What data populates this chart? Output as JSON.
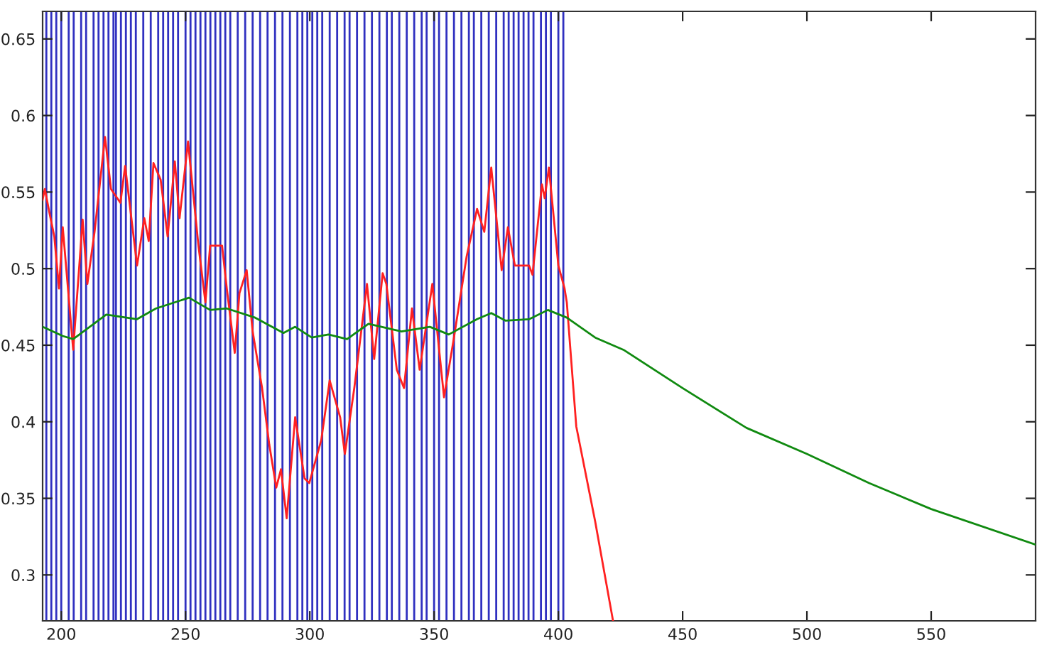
{
  "chart_data": {
    "type": "line",
    "xlim": [
      192.5,
      592
    ],
    "ylim": [
      0.27,
      0.668
    ],
    "xticks": [
      200,
      250,
      300,
      350,
      400,
      450,
      500,
      550
    ],
    "yticks": [
      0.3,
      0.35,
      0.4,
      0.45,
      0.5,
      0.55,
      0.6,
      0.65
    ],
    "grid": false,
    "series": [
      {
        "color": "#ff2020",
        "x": [
          192.5,
          193.4,
          195.3,
          197.2,
          199.1,
          200.6,
          204.8,
          208.6,
          210.5,
          213.4,
          217.6,
          220,
          223.8,
          225.7,
          230.5,
          233.4,
          235.2,
          237.1,
          240,
          242.8,
          245.7,
          247.6,
          251,
          255.2,
          258,
          259.9,
          264.7,
          266.6,
          269.8,
          271.7,
          274.6,
          277,
          280.8,
          283.7,
          286.5,
          288.4,
          290.7,
          294.1,
          297.9,
          299.8,
          304.6,
          308,
          312.2,
          314.1,
          317.9,
          323,
          325.9,
          329.3,
          330.8,
          335,
          337.9,
          341.1,
          344.2,
          349.3,
          354,
          357.8,
          363.1,
          367.3,
          370.2,
          373,
          377.2,
          379.7,
          382.5,
          388.2,
          389.6,
          393.4,
          394.5,
          396.2,
          400,
          402.5,
          403.4,
          407.2,
          414.8,
          422
        ],
        "values": [
          0.545,
          0.552,
          0.536,
          0.521,
          0.487,
          0.527,
          0.447,
          0.532,
          0.49,
          0.524,
          0.586,
          0.552,
          0.543,
          0.567,
          0.502,
          0.533,
          0.518,
          0.569,
          0.558,
          0.521,
          0.57,
          0.533,
          0.583,
          0.515,
          0.478,
          0.515,
          0.515,
          0.487,
          0.445,
          0.484,
          0.499,
          0.459,
          0.422,
          0.385,
          0.357,
          0.369,
          0.337,
          0.403,
          0.363,
          0.36,
          0.388,
          0.427,
          0.403,
          0.379,
          0.422,
          0.49,
          0.441,
          0.497,
          0.49,
          0.434,
          0.422,
          0.474,
          0.434,
          0.49,
          0.416,
          0.453,
          0.508,
          0.539,
          0.524,
          0.566,
          0.499,
          0.527,
          0.502,
          0.502,
          0.496,
          0.555,
          0.546,
          0.566,
          0.502,
          0.487,
          0.478,
          0.397,
          0.335,
          0.27
        ]
      },
      {
        "color": "#108a10",
        "x": [
          192.5,
          200.6,
          204.8,
          218.1,
          230.5,
          238.1,
          251.4,
          259.9,
          266.6,
          278,
          289.4,
          294.1,
          300.8,
          307.5,
          315,
          323.6,
          336.9,
          348.3,
          355.9,
          367.3,
          373,
          378.8,
          388.3,
          395.8,
          403.4,
          414.8,
          426.2,
          450,
          475.7,
          500,
          525,
          550,
          591.6
        ],
        "values": [
          0.462,
          0.456,
          0.454,
          0.47,
          0.467,
          0.474,
          0.481,
          0.473,
          0.474,
          0.468,
          0.458,
          0.462,
          0.455,
          0.457,
          0.454,
          0.464,
          0.459,
          0.462,
          0.457,
          0.467,
          0.471,
          0.466,
          0.467,
          0.473,
          0.468,
          0.455,
          0.447,
          0.422,
          0.396,
          0.379,
          0.36,
          0.343,
          0.32
        ]
      }
    ],
    "ref_lines": [
      {
        "axis": "x",
        "value": 194,
        "color": "#3030c0"
      },
      {
        "axis": "x",
        "value": 196,
        "color": "#3030c0"
      },
      {
        "axis": "x",
        "value": 198,
        "color": "#3030c0"
      },
      {
        "axis": "x",
        "value": 200,
        "color": "#3030c0"
      },
      {
        "axis": "x",
        "value": 203,
        "color": "#3030c0"
      },
      {
        "axis": "x",
        "value": 205,
        "color": "#3030c0"
      },
      {
        "axis": "x",
        "value": 208,
        "color": "#3030c0"
      },
      {
        "axis": "x",
        "value": 210,
        "color": "#3030c0"
      },
      {
        "axis": "x",
        "value": 213,
        "color": "#3030c0"
      },
      {
        "axis": "x",
        "value": 215,
        "color": "#3030c0"
      },
      {
        "axis": "x",
        "value": 217,
        "color": "#3030c0"
      },
      {
        "axis": "x",
        "value": 219,
        "color": "#3030c0"
      },
      {
        "axis": "x",
        "value": 221,
        "color": "#3030c0"
      },
      {
        "axis": "x",
        "value": 222,
        "color": "#3030c0"
      },
      {
        "axis": "x",
        "value": 224,
        "color": "#3030c0"
      },
      {
        "axis": "x",
        "value": 226,
        "color": "#3030c0"
      },
      {
        "axis": "x",
        "value": 228,
        "color": "#3030c0"
      },
      {
        "axis": "x",
        "value": 230,
        "color": "#3030c0"
      },
      {
        "axis": "x",
        "value": 233,
        "color": "#3030c0"
      },
      {
        "axis": "x",
        "value": 236,
        "color": "#3030c0"
      },
      {
        "axis": "x",
        "value": 239,
        "color": "#3030c0"
      },
      {
        "axis": "x",
        "value": 241,
        "color": "#3030c0"
      },
      {
        "axis": "x",
        "value": 243,
        "color": "#3030c0"
      },
      {
        "axis": "x",
        "value": 245,
        "color": "#3030c0"
      },
      {
        "axis": "x",
        "value": 247,
        "color": "#3030c0"
      },
      {
        "axis": "x",
        "value": 250,
        "color": "#3030c0"
      },
      {
        "axis": "x",
        "value": 252,
        "color": "#3030c0"
      },
      {
        "axis": "x",
        "value": 254,
        "color": "#3030c0"
      },
      {
        "axis": "x",
        "value": 256,
        "color": "#3030c0"
      },
      {
        "axis": "x",
        "value": 258,
        "color": "#3030c0"
      },
      {
        "axis": "x",
        "value": 260,
        "color": "#3030c0"
      },
      {
        "axis": "x",
        "value": 262,
        "color": "#3030c0"
      },
      {
        "axis": "x",
        "value": 264,
        "color": "#3030c0"
      },
      {
        "axis": "x",
        "value": 266,
        "color": "#3030c0"
      },
      {
        "axis": "x",
        "value": 268,
        "color": "#3030c0"
      },
      {
        "axis": "x",
        "value": 271,
        "color": "#3030c0"
      },
      {
        "axis": "x",
        "value": 274,
        "color": "#3030c0"
      },
      {
        "axis": "x",
        "value": 277,
        "color": "#3030c0"
      },
      {
        "axis": "x",
        "value": 280,
        "color": "#3030c0"
      },
      {
        "axis": "x",
        "value": 283,
        "color": "#3030c0"
      },
      {
        "axis": "x",
        "value": 286,
        "color": "#3030c0"
      },
      {
        "axis": "x",
        "value": 289,
        "color": "#3030c0"
      },
      {
        "axis": "x",
        "value": 292,
        "color": "#3030c0"
      },
      {
        "axis": "x",
        "value": 295,
        "color": "#3030c0"
      },
      {
        "axis": "x",
        "value": 297,
        "color": "#3030c0"
      },
      {
        "axis": "x",
        "value": 299,
        "color": "#3030c0"
      },
      {
        "axis": "x",
        "value": 301,
        "color": "#3030c0"
      },
      {
        "axis": "x",
        "value": 303,
        "color": "#3030c0"
      },
      {
        "axis": "x",
        "value": 305,
        "color": "#3030c0"
      },
      {
        "axis": "x",
        "value": 308,
        "color": "#3030c0"
      },
      {
        "axis": "x",
        "value": 311,
        "color": "#3030c0"
      },
      {
        "axis": "x",
        "value": 314,
        "color": "#3030c0"
      },
      {
        "axis": "x",
        "value": 316,
        "color": "#3030c0"
      },
      {
        "axis": "x",
        "value": 319,
        "color": "#3030c0"
      },
      {
        "axis": "x",
        "value": 322,
        "color": "#3030c0"
      },
      {
        "axis": "x",
        "value": 325,
        "color": "#3030c0"
      },
      {
        "axis": "x",
        "value": 328,
        "color": "#3030c0"
      },
      {
        "axis": "x",
        "value": 331,
        "color": "#3030c0"
      },
      {
        "axis": "x",
        "value": 333,
        "color": "#3030c0"
      },
      {
        "axis": "x",
        "value": 336,
        "color": "#3030c0"
      },
      {
        "axis": "x",
        "value": 339,
        "color": "#3030c0"
      },
      {
        "axis": "x",
        "value": 342,
        "color": "#3030c0"
      },
      {
        "axis": "x",
        "value": 345,
        "color": "#3030c0"
      },
      {
        "axis": "x",
        "value": 347,
        "color": "#3030c0"
      },
      {
        "axis": "x",
        "value": 350,
        "color": "#3030c0"
      },
      {
        "axis": "x",
        "value": 352,
        "color": "#3030c0"
      },
      {
        "axis": "x",
        "value": 355,
        "color": "#3030c0"
      },
      {
        "axis": "x",
        "value": 358,
        "color": "#3030c0"
      },
      {
        "axis": "x",
        "value": 361,
        "color": "#3030c0"
      },
      {
        "axis": "x",
        "value": 364,
        "color": "#3030c0"
      },
      {
        "axis": "x",
        "value": 366,
        "color": "#3030c0"
      },
      {
        "axis": "x",
        "value": 369,
        "color": "#3030c0"
      },
      {
        "axis": "x",
        "value": 372,
        "color": "#3030c0"
      },
      {
        "axis": "x",
        "value": 375,
        "color": "#3030c0"
      },
      {
        "axis": "x",
        "value": 378,
        "color": "#3030c0"
      },
      {
        "axis": "x",
        "value": 380,
        "color": "#3030c0"
      },
      {
        "axis": "x",
        "value": 382,
        "color": "#3030c0"
      },
      {
        "axis": "x",
        "value": 384,
        "color": "#3030c0"
      },
      {
        "axis": "x",
        "value": 386,
        "color": "#3030c0"
      },
      {
        "axis": "x",
        "value": 388,
        "color": "#3030c0"
      },
      {
        "axis": "x",
        "value": 390,
        "color": "#3030c0"
      },
      {
        "axis": "x",
        "value": 393,
        "color": "#3030c0"
      },
      {
        "axis": "x",
        "value": 395,
        "color": "#3030c0"
      },
      {
        "axis": "x",
        "value": 397,
        "color": "#3030c0"
      },
      {
        "axis": "x",
        "value": 400,
        "color": "#3030c0"
      },
      {
        "axis": "x",
        "value": 402,
        "color": "#3030c0"
      }
    ]
  }
}
